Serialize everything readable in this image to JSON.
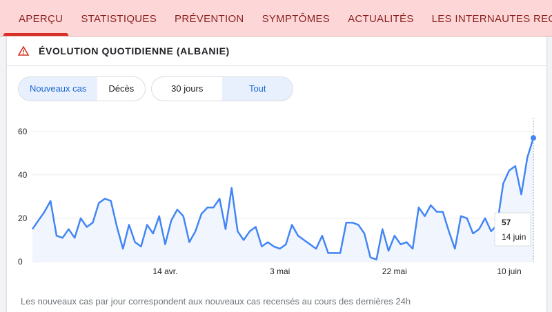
{
  "tabs": [
    "APERÇU",
    "STATISTIQUES",
    "PRÉVENTION",
    "SYMPTÔMES",
    "ACTUALITÉS",
    "LES INTERNAUTES RECHERCHENT AUSSI"
  ],
  "card_title": "ÉVOLUTION QUOTIDIENNE (ALBANIE)",
  "toggles": [
    [
      "Nouveaux cas",
      "Décès"
    ],
    [
      "30 jours",
      "Tout"
    ]
  ],
  "footnote": "Les nouveaux cas par jour correspondent aux nouveaux cas recensés au cours des dernières 24h",
  "chart_data": {
    "type": "line",
    "color": "#4285f4",
    "categories": [
      null,
      null,
      null,
      null,
      null,
      null,
      null,
      null,
      null,
      null,
      null,
      null,
      null,
      null,
      null,
      null,
      null,
      null,
      null,
      null,
      null,
      null,
      "14 avr.",
      null,
      null,
      null,
      null,
      null,
      null,
      null,
      null,
      null,
      null,
      null,
      null,
      null,
      null,
      null,
      null,
      null,
      null,
      "3 mai",
      null,
      null,
      null,
      null,
      null,
      null,
      null,
      null,
      null,
      null,
      null,
      null,
      null,
      null,
      null,
      null,
      null,
      null,
      "22 mai",
      null,
      null,
      null,
      null,
      null,
      null,
      null,
      null,
      null,
      null,
      null,
      null,
      null,
      null,
      null,
      null,
      null,
      null,
      "10 juin",
      null,
      null,
      null,
      null
    ],
    "values": [
      15,
      19,
      23,
      28,
      12,
      11,
      15,
      11,
      20,
      16,
      18,
      27,
      29,
      28,
      16,
      6,
      17,
      9,
      7,
      17,
      13,
      21,
      8,
      19,
      24,
      21,
      9,
      14,
      22,
      25,
      25,
      29,
      15,
      34,
      14,
      10,
      14,
      16,
      7,
      9,
      7,
      6,
      8,
      17,
      12,
      10,
      8,
      6,
      12,
      4,
      4,
      4,
      18,
      18,
      17,
      13,
      2,
      1,
      15,
      5,
      12,
      8,
      9,
      6,
      25,
      21,
      26,
      23,
      23,
      14,
      6,
      21,
      20,
      13,
      15,
      20,
      14,
      17,
      36,
      42,
      44,
      31,
      48,
      57
    ],
    "ylim": [
      0,
      65
    ],
    "yticks": [
      0,
      20,
      40,
      60
    ],
    "grid": true,
    "tooltip_date": "14 juin"
  }
}
